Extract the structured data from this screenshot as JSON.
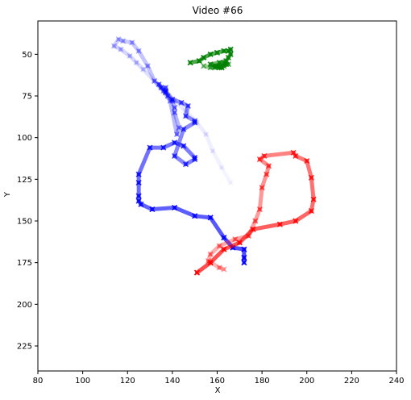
{
  "chart_data": {
    "type": "line",
    "title": "Video #66",
    "xlabel": "X",
    "ylabel": "Y",
    "xlim": [
      80,
      240
    ],
    "ylim": [
      240,
      30
    ],
    "y_inverted": true,
    "grid": false,
    "legend": "none",
    "xticks": [
      80,
      100,
      120,
      140,
      160,
      180,
      200,
      220,
      240
    ],
    "yticks": [
      50,
      75,
      100,
      125,
      150,
      175,
      200,
      225
    ],
    "marker": "x",
    "series": [
      {
        "color": "#0000ff",
        "x": [
          172,
          172,
          172,
          167,
          163,
          157,
          150,
          141,
          131,
          126,
          125,
          125,
          125,
          125,
          130,
          136,
          141,
          145,
          150,
          150,
          146,
          141,
          145,
          150,
          150,
          146,
          147,
          144,
          140,
          137,
          134,
          135,
          137,
          137,
          138,
          140,
          141,
          141,
          143,
          142,
          139,
          136,
          132,
          129,
          125,
          122,
          118,
          116,
          114,
          117,
          121,
          124,
          127,
          132,
          137,
          141,
          146,
          151,
          155,
          158,
          162,
          166
        ],
        "y": [
          175,
          172,
          167,
          166,
          160,
          148,
          147,
          142,
          143,
          140,
          138,
          135,
          127,
          122,
          106,
          106,
          103,
          105,
          112,
          113,
          116,
          111,
          95,
          91,
          90,
          87,
          81,
          79,
          77,
          73,
          68,
          70,
          72,
          70,
          75,
          78,
          82,
          85,
          94,
          98,
          78,
          72,
          66,
          57,
          48,
          43,
          42,
          41,
          45,
          47,
          51,
          55,
          59,
          66,
          72,
          78,
          84,
          91,
          98,
          108,
          118,
          127
        ],
        "alpha_start": 1.0,
        "alpha_end": 0.04
      },
      {
        "color": "#ff0000",
        "x": [
          151,
          157,
          163,
          170,
          176,
          188,
          195,
          202,
          203,
          202,
          200,
          195,
          194,
          181,
          179,
          183,
          182,
          180,
          179,
          177,
          174,
          168,
          161,
          157,
          156,
          161,
          163
        ],
        "y": [
          181,
          175,
          167,
          163,
          155,
          152,
          150,
          144,
          137,
          124,
          114,
          111,
          109,
          111,
          113,
          117,
          122,
          130,
          143,
          150,
          159,
          161,
          165,
          170,
          174,
          178,
          179
        ],
        "alpha_start": 1.0,
        "alpha_end": 0.35
      },
      {
        "color": "#008000",
        "x": [
          148,
          152,
          154,
          157,
          160,
          163,
          165,
          166,
          166,
          165,
          164,
          161,
          157,
          159,
          161,
          162,
          163,
          164,
          162,
          159,
          160,
          163,
          165,
          161,
          157,
          154
        ],
        "y": [
          55,
          54,
          52,
          50,
          49,
          48,
          48,
          47,
          50,
          52,
          54,
          55,
          56,
          57,
          58,
          58,
          57,
          56,
          58,
          58,
          57,
          55,
          56,
          57,
          58,
          57
        ],
        "alpha_start": 1.0,
        "alpha_end": 0.55
      }
    ]
  }
}
